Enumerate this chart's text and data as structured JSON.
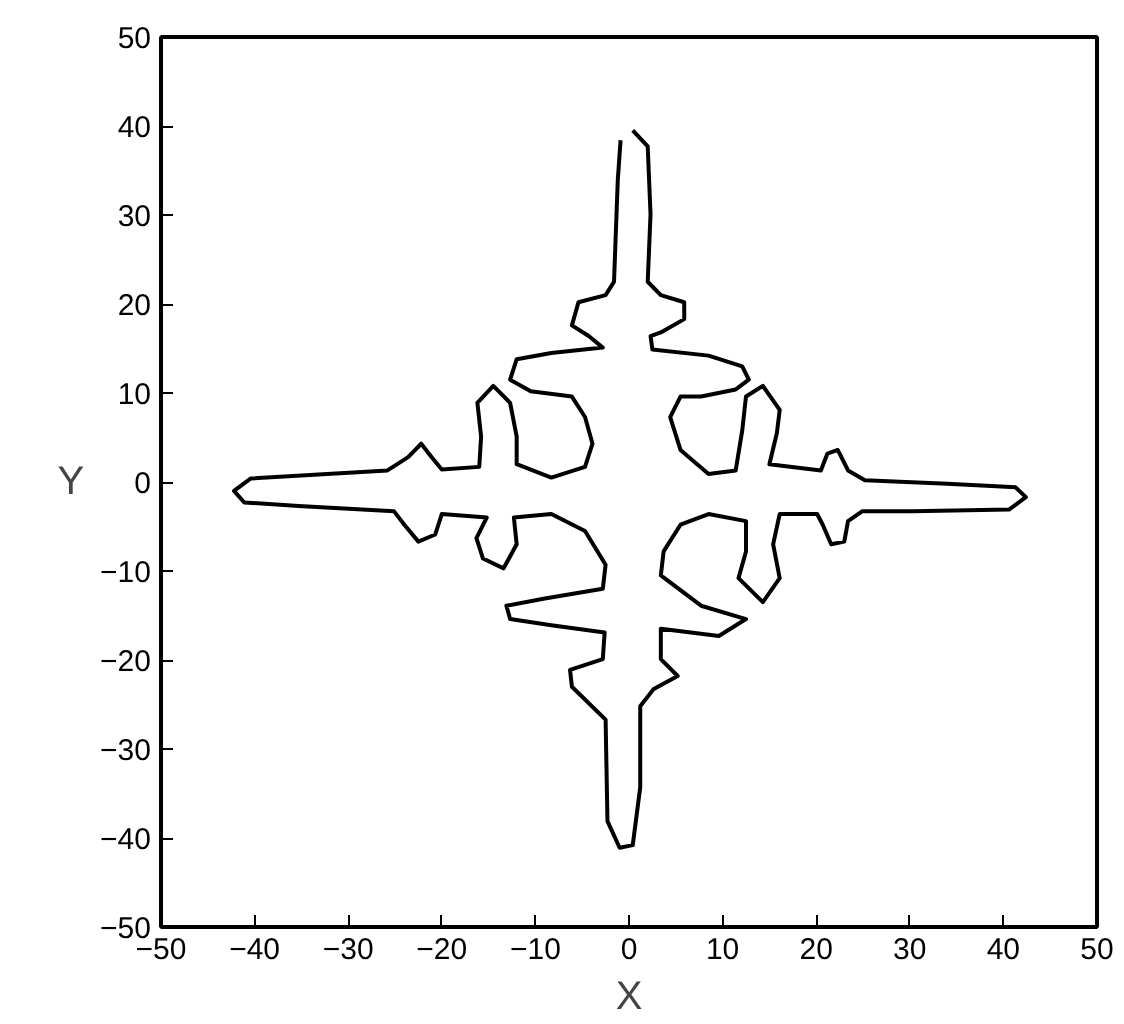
{
  "chart_data": {
    "type": "line",
    "xlabel": "X",
    "ylabel": "Y",
    "xlim": [
      -50,
      50
    ],
    "ylim": [
      -50,
      50
    ],
    "xticks": [
      {
        "value": -50,
        "label": "−50"
      },
      {
        "value": -40,
        "label": "−40"
      },
      {
        "value": -30,
        "label": "−30"
      },
      {
        "value": -20,
        "label": "−20"
      },
      {
        "value": -10,
        "label": "−10"
      },
      0,
      10,
      20,
      30,
      40,
      50
    ],
    "yticks": [
      {
        "value": -50,
        "label": "−50"
      },
      {
        "value": -40,
        "label": "−40"
      },
      {
        "value": -30,
        "label": "−30"
      },
      {
        "value": -20,
        "label": "−20"
      },
      {
        "value": -10,
        "label": "−10"
      },
      0,
      10,
      20,
      30,
      40,
      50
    ],
    "grid": false,
    "marker": "none",
    "line_style": "solid",
    "x": [
      0.4,
      2.0,
      2.3,
      2.0,
      3.4,
      5.9,
      5.9,
      3.4,
      2.3,
      2.5,
      8.5,
      12.1,
      12.8,
      11.4,
      7.7,
      5.5,
      4.4,
      5.5,
      8.5,
      11.4,
      12.1,
      12.5,
      14.3,
      16.1,
      15.8,
      15.0,
      20.5,
      21.2,
      22.3,
      23.4,
      25.2,
      34.0,
      41.3,
      42.4,
      40.6,
      30.3,
      24.9,
      23.4,
      23.0,
      21.6,
      20.7,
      20.1,
      16.1,
      15.4,
      16.1,
      14.3,
      11.7,
      12.5,
      12.5,
      8.5,
      5.5,
      3.7,
      3.4,
      7.7,
      12.5,
      9.6,
      3.4,
      3.4,
      5.2,
      2.6,
      1.2,
      1.2,
      0.4,
      -1.0,
      -2.3,
      -2.5,
      -6.1,
      -6.3,
      -2.8,
      -2.6,
      -8.3,
      -12.7,
      -13.1,
      -9.0,
      -2.8,
      -2.5,
      -4.7,
      -8.3,
      -12.3,
      -12.0,
      -13.4,
      -15.6,
      -16.3,
      -15.2,
      -20.0,
      -20.7,
      -22.5,
      -24.0,
      -25.1,
      -35.3,
      -41.1,
      -42.2,
      -40.4,
      -25.8,
      -23.6,
      -22.2,
      -21.1,
      -20.0,
      -16.0,
      -15.8,
      -16.2,
      -14.5,
      -12.7,
      -12.0,
      -12.0,
      -8.3,
      -4.7,
      -3.9,
      -4.7,
      -6.1,
      -10.5,
      -12.7,
      -12.0,
      -8.3,
      -2.8,
      -4.3,
      -6.1,
      -5.4,
      -2.5,
      -1.6,
      -1.2,
      -0.9
    ],
    "series": [
      {
        "color": "#000000",
        "values": [
          39.5,
          37.7,
          30.1,
          22.5,
          21.0,
          20.2,
          18.3,
          16.8,
          16.4,
          14.9,
          14.2,
          13.0,
          11.5,
          10.4,
          9.6,
          9.6,
          7.3,
          3.6,
          0.9,
          1.3,
          5.8,
          9.6,
          10.8,
          8.1,
          5.5,
          2.0,
          1.3,
          3.2,
          3.6,
          1.3,
          0.2,
          -0.2,
          -0.6,
          -1.7,
          -3.1,
          -3.3,
          -3.3,
          -4.4,
          -6.7,
          -7.0,
          -4.8,
          -3.6,
          -3.6,
          -7.0,
          -10.8,
          -13.5,
          -10.8,
          -7.8,
          -4.4,
          -3.6,
          -4.8,
          -7.8,
          -10.5,
          -13.9,
          -15.4,
          -17.3,
          -16.5,
          -19.9,
          -21.8,
          -23.3,
          -25.2,
          -34.3,
          -40.8,
          -41.1,
          -38.1,
          -26.7,
          -23.0,
          -21.1,
          -19.9,
          -16.9,
          -16.1,
          -15.4,
          -13.9,
          -13.1,
          -12.0,
          -9.3,
          -5.5,
          -3.6,
          -4.0,
          -7.0,
          -9.7,
          -8.6,
          -6.3,
          -4.0,
          -3.6,
          -5.9,
          -6.7,
          -4.8,
          -3.3,
          -2.7,
          -2.3,
          -1.0,
          0.4,
          1.3,
          2.8,
          4.3,
          2.8,
          1.4,
          1.7,
          5.1,
          8.9,
          10.8,
          8.9,
          5.1,
          2.0,
          0.5,
          1.7,
          4.3,
          7.3,
          9.6,
          10.2,
          11.5,
          13.8,
          14.5,
          15.1,
          16.4,
          17.6,
          20.2,
          21.0,
          22.5,
          33.9,
          38.4
        ]
      }
    ]
  }
}
